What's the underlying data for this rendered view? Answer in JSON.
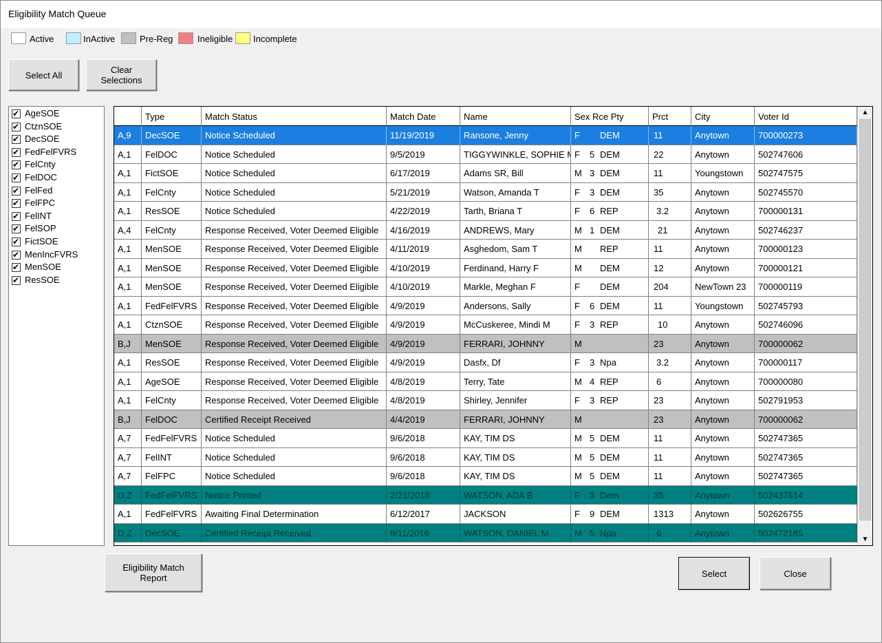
{
  "window": {
    "title": "Eligibility Match Queue"
  },
  "legend": [
    {
      "label": "Active",
      "color": "#ffffff"
    },
    {
      "label": "InActive",
      "color": "#bfefff"
    },
    {
      "label": "Pre-Reg",
      "color": "#c0c0c0"
    },
    {
      "label": "Ineligible",
      "color": "#f08080"
    },
    {
      "label": "Incomplete",
      "color": "#ffff80"
    }
  ],
  "buttons": {
    "select_all": "Select All",
    "clear_selections": "Clear Selections",
    "report": "Eligibility Match Report",
    "select": "Select",
    "close": "Close"
  },
  "types": [
    {
      "label": "AgeSOE",
      "checked": true
    },
    {
      "label": "CtznSOE",
      "checked": true
    },
    {
      "label": "DecSOE",
      "checked": true
    },
    {
      "label": "FedFelFVRS",
      "checked": true
    },
    {
      "label": "FelCnty",
      "checked": true
    },
    {
      "label": "FelDOC",
      "checked": true
    },
    {
      "label": "FelFed",
      "checked": true
    },
    {
      "label": "FelFPC",
      "checked": true
    },
    {
      "label": "FelINT",
      "checked": true
    },
    {
      "label": "FelSOP",
      "checked": true
    },
    {
      "label": "FictSOE",
      "checked": true
    },
    {
      "label": "MenIncFVRS",
      "checked": true
    },
    {
      "label": "MenSOE",
      "checked": true
    },
    {
      "label": "ResSOE",
      "checked": true
    }
  ],
  "grid": {
    "columns": [
      "",
      "Type",
      "Match Status",
      "Match Date",
      "Name",
      "Sex Rce Pty",
      "Prct",
      "City",
      "Voter Id"
    ],
    "rows": [
      {
        "state": "selected",
        "code": "A,9",
        "type": "DecSOE",
        "status": "Notice Scheduled",
        "date": "11/19/2019",
        "name": "Ransone, Jenny",
        "sex": "F",
        "race": "",
        "party": "DEM",
        "prct": "11",
        "city": "Anytown",
        "voter_id": "700000273"
      },
      {
        "state": "active",
        "code": "A,1",
        "type": "FelDOC",
        "status": "Notice Scheduled",
        "date": "9/5/2019",
        "name": "TIGGYWINKLE, SOPHIE M",
        "sex": "F",
        "race": "5",
        "party": "DEM",
        "prct": "22",
        "city": "Anytown",
        "voter_id": "502747606"
      },
      {
        "state": "active",
        "code": "A,1",
        "type": "FictSOE",
        "status": "Notice Scheduled",
        "date": "6/17/2019",
        "name": "Adams SR, Bill",
        "sex": "M",
        "race": "3",
        "party": "DEM",
        "prct": "11",
        "city": "Youngstown",
        "voter_id": "502747575"
      },
      {
        "state": "active",
        "code": "A,1",
        "type": "FelCnty",
        "status": "Notice Scheduled",
        "date": "5/21/2019",
        "name": "Watson, Amanda T",
        "sex": "F",
        "race": "3",
        "party": "DEM",
        "prct": "35",
        "city": "Anytown",
        "voter_id": "502745570"
      },
      {
        "state": "active",
        "code": "A,1",
        "type": "ResSOE",
        "status": "Notice Scheduled",
        "date": "4/22/2019",
        "name": "Tarth, Briana T",
        "sex": "F",
        "race": "6",
        "party": "REP",
        "prct": "3.2",
        "city": "Anytown",
        "voter_id": "700000131"
      },
      {
        "state": "active",
        "code": "A,4",
        "type": "FelCnty",
        "status": "Response Received, Voter Deemed Eligible",
        "date": "4/16/2019",
        "name": "ANDREWS, Mary",
        "sex": "M",
        "race": "1",
        "party": "DEM",
        "prct": "21",
        "city": "Anytown",
        "voter_id": "502746237"
      },
      {
        "state": "active",
        "code": "A,1",
        "type": "MenSOE",
        "status": "Response Received, Voter Deemed Eligible",
        "date": "4/11/2019",
        "name": "Asghedom, Sam T",
        "sex": "M",
        "race": "",
        "party": "REP",
        "prct": "11",
        "city": "Anytown",
        "voter_id": "700000123"
      },
      {
        "state": "active",
        "code": "A,1",
        "type": "MenSOE",
        "status": "Response Received, Voter Deemed Eligible",
        "date": "4/10/2019",
        "name": "Ferdinand, Harry F",
        "sex": "M",
        "race": "",
        "party": "DEM",
        "prct": "12",
        "city": "Anytown",
        "voter_id": "700000121"
      },
      {
        "state": "active",
        "code": "A,1",
        "type": "MenSOE",
        "status": "Response Received, Voter Deemed Eligible",
        "date": "4/10/2019",
        "name": "Markle, Meghan F",
        "sex": "F",
        "race": "",
        "party": "DEM",
        "prct": "204",
        "city": "NewTown 23",
        "voter_id": "700000119"
      },
      {
        "state": "active",
        "code": "A,1",
        "type": "FedFelFVRS",
        "status": "Response Received, Voter Deemed Eligible",
        "date": "4/9/2019",
        "name": "Andersons, Sally",
        "sex": "F",
        "race": "6",
        "party": "DEM",
        "prct": "11",
        "city": "Youngstown",
        "voter_id": "502745793"
      },
      {
        "state": "active",
        "code": "A,1",
        "type": "CtznSOE",
        "status": "Response Received, Voter Deemed Eligible",
        "date": "4/9/2019",
        "name": "McCuskeree, Mindi M",
        "sex": "F",
        "race": "3",
        "party": "REP",
        "prct": "10",
        "city": "Anytown",
        "voter_id": "502746096"
      },
      {
        "state": "prereg",
        "code": "B,J",
        "type": "MenSOE",
        "status": "Response Received, Voter Deemed Eligible",
        "date": "4/9/2019",
        "name": "FERRARI, JOHNNY",
        "sex": "M",
        "race": "",
        "party": "",
        "prct": "23",
        "city": "Anytown",
        "voter_id": "700000062"
      },
      {
        "state": "active",
        "code": "A,1",
        "type": "ResSOE",
        "status": "Response Received, Voter Deemed Eligible",
        "date": "4/9/2019",
        "name": "Dasfx, Df",
        "sex": "F",
        "race": "3",
        "party": "Npa",
        "prct": "3.2",
        "city": "Anytown",
        "voter_id": "700000117"
      },
      {
        "state": "active",
        "code": "A,1",
        "type": "AgeSOE",
        "status": "Response Received, Voter Deemed Eligible",
        "date": "4/8/2019",
        "name": "Terry, Tate",
        "sex": "M",
        "race": "4",
        "party": "REP",
        "prct": "6",
        "city": "Anytown",
        "voter_id": "700000080"
      },
      {
        "state": "active",
        "code": "A,1",
        "type": "FelCnty",
        "status": "Response Received, Voter Deemed Eligible",
        "date": "4/8/2019",
        "name": "Shirley, Jennifer",
        "sex": "F",
        "race": "3",
        "party": "REP",
        "prct": "23",
        "city": "Anytown",
        "voter_id": "502791953"
      },
      {
        "state": "prereg",
        "code": "B,J",
        "type": "FelDOC",
        "status": "Certified Receipt Received",
        "date": "4/4/2019",
        "name": "FERRARI, JOHNNY",
        "sex": "M",
        "race": "",
        "party": "",
        "prct": "23",
        "city": "Anytown",
        "voter_id": "700000062"
      },
      {
        "state": "active",
        "code": "A,7",
        "type": "FedFelFVRS",
        "status": "Notice Scheduled",
        "date": "9/6/2018",
        "name": "KAY, TIM DS",
        "sex": "M",
        "race": "5",
        "party": "DEM",
        "prct": "11",
        "city": "Anytown",
        "voter_id": "502747365"
      },
      {
        "state": "active",
        "code": "A,7",
        "type": "FelINT",
        "status": "Notice Scheduled",
        "date": "9/6/2018",
        "name": "KAY, TIM DS",
        "sex": "M",
        "race": "5",
        "party": "DEM",
        "prct": "11",
        "city": "Anytown",
        "voter_id": "502747365"
      },
      {
        "state": "active",
        "code": "A,7",
        "type": "FelFPC",
        "status": "Notice Scheduled",
        "date": "9/6/2018",
        "name": "KAY, TIM DS",
        "sex": "M",
        "race": "5",
        "party": "DEM",
        "prct": "11",
        "city": "Anytown",
        "voter_id": "502747365"
      },
      {
        "state": "teal",
        "code": "D,Z",
        "type": "FedFelFVRS",
        "status": "Notice Printed",
        "date": "2/21/2018",
        "name": "WATSON, ADA B",
        "sex": "F",
        "race": "3",
        "party": "Dem",
        "prct": "35",
        "city": "Anytown",
        "voter_id": "502437614"
      },
      {
        "state": "active",
        "code": "A,1",
        "type": "FedFelFVRS",
        "status": "Awaiting Final Determination",
        "date": "6/12/2017",
        "name": "JACKSON",
        "sex": "F",
        "race": "9",
        "party": "DEM",
        "prct": "1313",
        "city": "Anytown",
        "voter_id": "502626755"
      },
      {
        "state": "teal",
        "code": "D,Z",
        "type": "DecSOE",
        "status": "Certified Receipt Received",
        "date": "8/11/2016",
        "name": "WATSON, DANIEL M",
        "sex": "M",
        "race": "5",
        "party": "Npa",
        "prct": "6",
        "city": "Anytown",
        "voter_id": "502472185"
      }
    ]
  }
}
